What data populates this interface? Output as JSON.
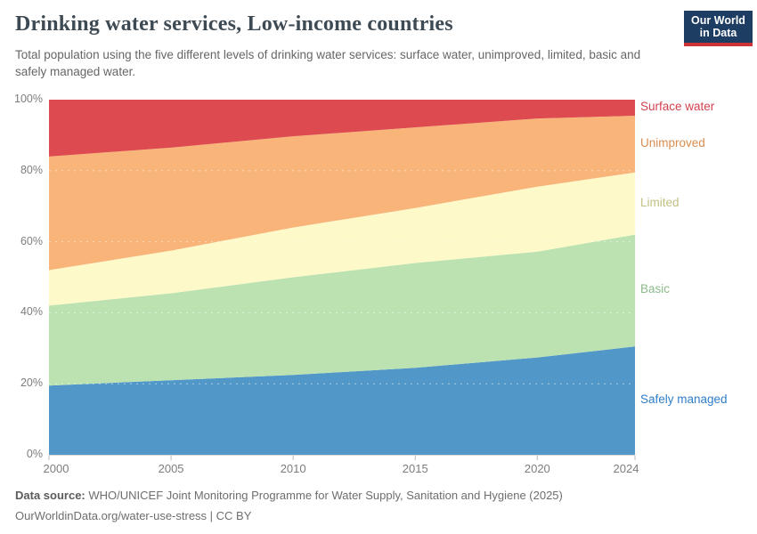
{
  "header": {
    "title": "Drinking water services, Low-income countries",
    "subtitle": "Total population using the five different levels of drinking water services: surface water, unimproved, limited, basic and safely managed water.",
    "logo": {
      "line1": "Our World",
      "line2": "in Data",
      "bg_color": "#1d3d63",
      "accent_color": "#cb3335"
    }
  },
  "chart_data": {
    "type": "area",
    "stacked": true,
    "title": "Drinking water services, Low-income countries",
    "unit": "%",
    "x": [
      2000,
      2005,
      2010,
      2015,
      2020,
      2024
    ],
    "x_tick_labels": [
      "2000",
      "2005",
      "2010",
      "2015",
      "2020",
      "2024"
    ],
    "y_ticks": [
      0,
      20,
      40,
      60,
      80,
      100
    ],
    "y_tick_labels": [
      "0%",
      "20%",
      "40%",
      "60%",
      "80%",
      "100%"
    ],
    "ylim": [
      0,
      100
    ],
    "grid": "dashed",
    "gridlines_at": [
      20,
      40,
      60,
      80
    ],
    "legend_position": "right-edge-labels",
    "series": [
      {
        "name": "Safely managed",
        "color": "#5198c8",
        "label_color": "#2e7ec9",
        "values": [
          19.5,
          21,
          22.5,
          24.5,
          27.4,
          30.5
        ]
      },
      {
        "name": "Basic",
        "color": "#bce2b2",
        "label_color": "#8cba8a",
        "values": [
          22.5,
          24.5,
          27.5,
          29.5,
          29.8,
          31.5
        ]
      },
      {
        "name": "Limited",
        "color": "#fdf9c8",
        "label_color": "#c1c083",
        "values": [
          10,
          12,
          14,
          15.5,
          18.3,
          17.5
        ]
      },
      {
        "name": "Unimproved",
        "color": "#f9b47a",
        "label_color": "#d98d4f",
        "values": [
          32,
          29,
          25.7,
          22.7,
          19.2,
          16
        ]
      },
      {
        "name": "Surface water",
        "color": "#dd4a4f",
        "label_color": "#d2424e",
        "values": [
          16,
          13.5,
          10.3,
          7.8,
          5.3,
          4.5
        ]
      }
    ]
  },
  "axis": {
    "tick_color": "#bbbbbb",
    "baseline_color": "#d8d8d8",
    "label_color": "#7d7d7d"
  },
  "footer": {
    "source_label": "Data source:",
    "source_text": "WHO/UNICEF Joint Monitoring Programme for Water Supply, Sanitation and Hygiene (2025)",
    "license_line": "OurWorldinData.org/water-use-stress | CC BY"
  }
}
